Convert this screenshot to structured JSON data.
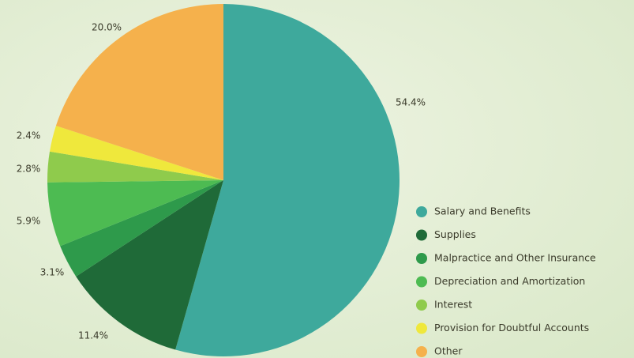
{
  "chart_data": {
    "type": "pie",
    "categories": [
      "Salary and Benefits",
      "Supplies",
      "Malpractice and Other Insurance",
      "Depreciation and Amortization",
      "Interest",
      "Provision for Doubtful Accounts",
      "Other"
    ],
    "values": [
      54.4,
      11.4,
      3.1,
      5.9,
      2.8,
      2.4,
      20.0
    ],
    "value_labels": [
      "54.4%",
      "11.4%",
      "3.1%",
      "5.9%",
      "2.8%",
      "2.4%",
      "20.0%"
    ],
    "colors": [
      "#3ea99c",
      "#1f6a38",
      "#2e9a4b",
      "#4dbb52",
      "#8fcb4c",
      "#efe83c",
      "#f5b14c"
    ],
    "legend": "lower right"
  }
}
